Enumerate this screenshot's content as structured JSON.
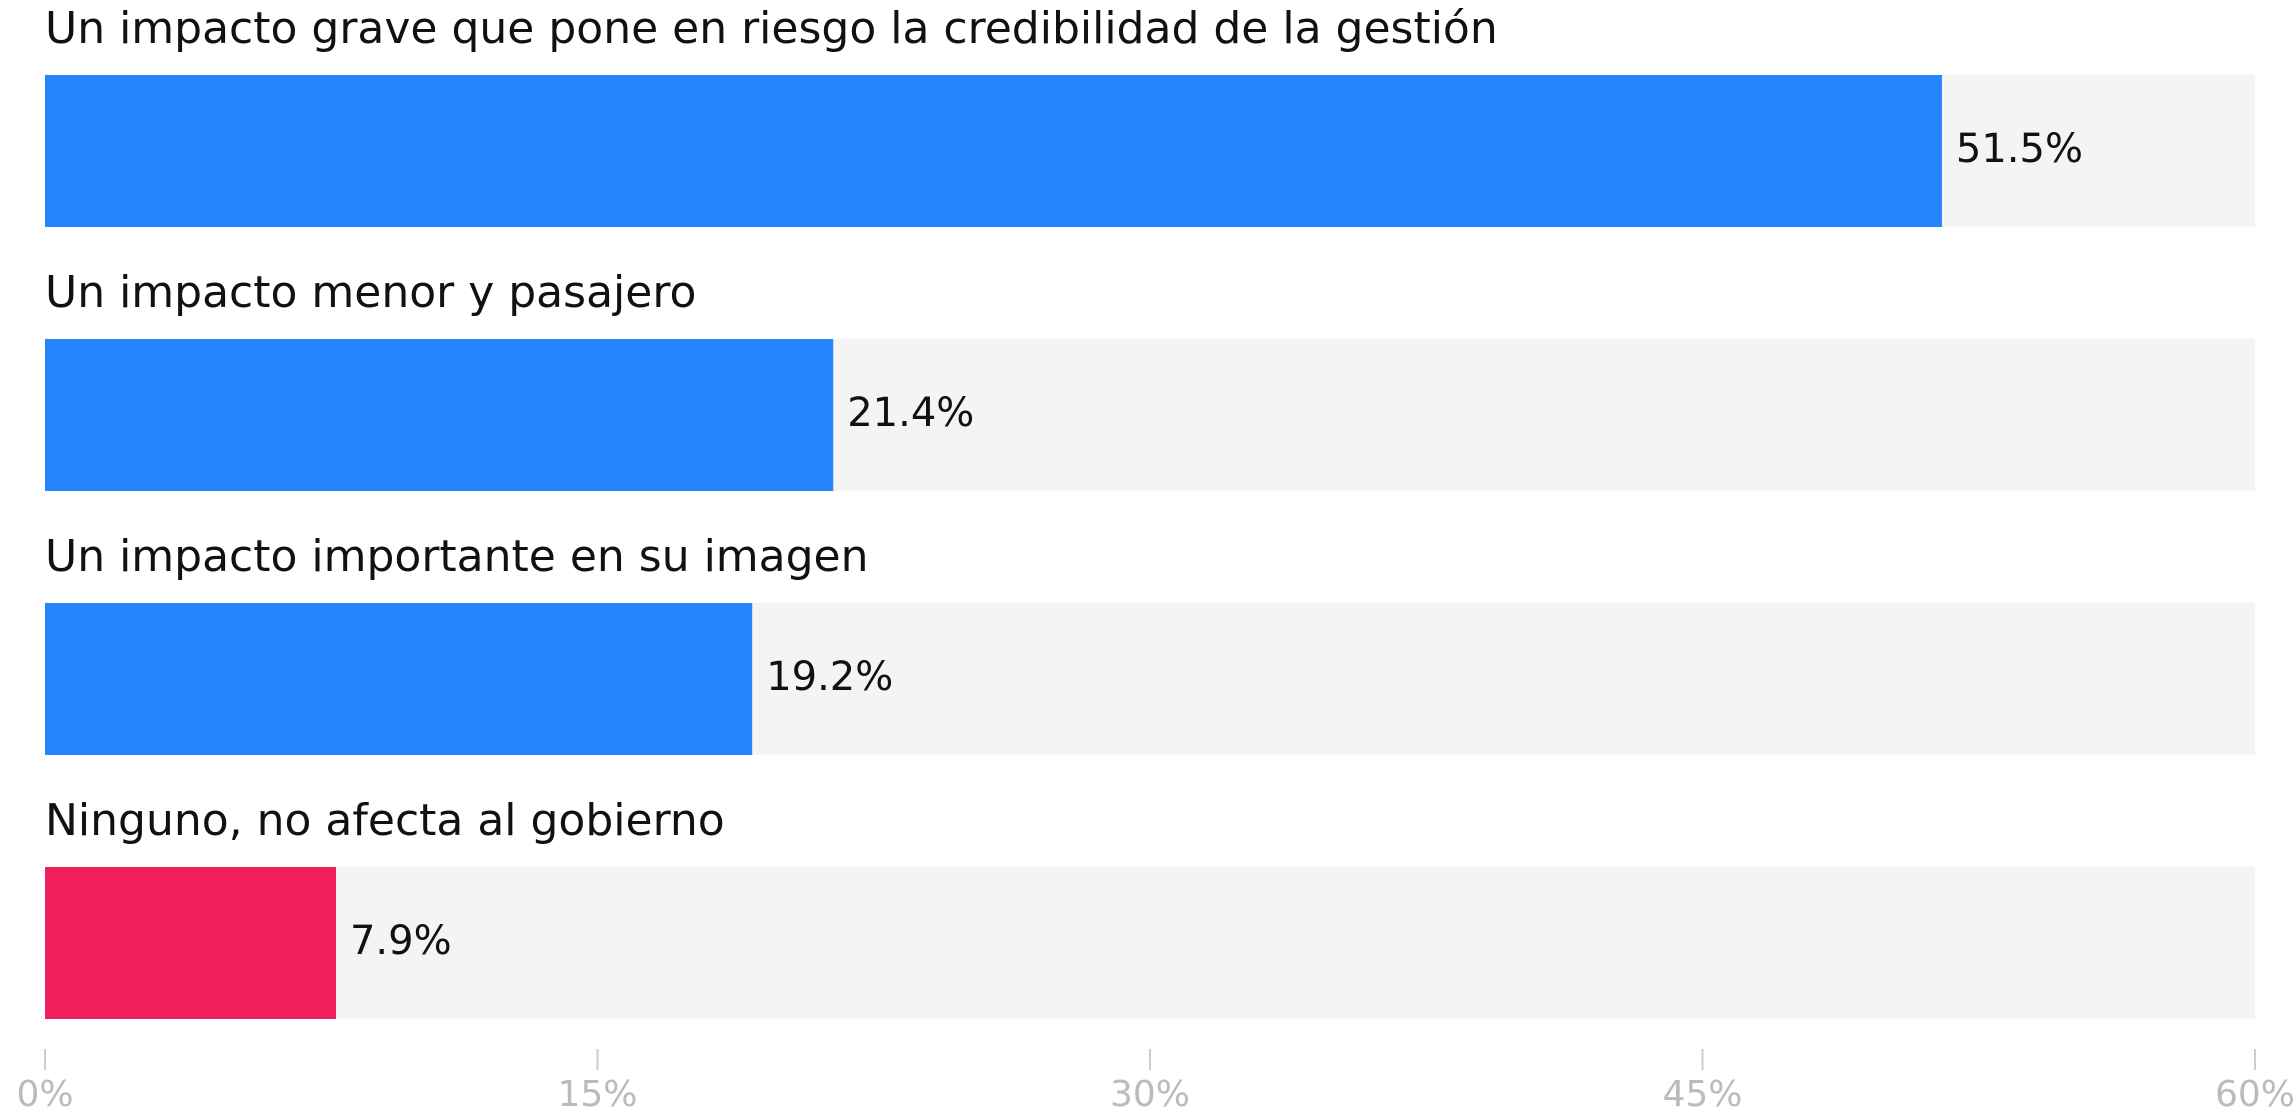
{
  "chart_data": {
    "type": "barh",
    "categories": [
      "Un impacto grave que pone en riesgo la credibilidad de la gestión",
      "Un impacto menor y pasajero",
      "Un impacto importante en su imagen",
      "Ninguno, no afecta al gobierno"
    ],
    "values": [
      51.5,
      21.4,
      19.2,
      7.9
    ],
    "value_labels": [
      "51.5%",
      "21.4%",
      "19.2%",
      "7.9%"
    ],
    "colors": [
      "#2684ff",
      "#2684ff",
      "#2684ff",
      "#ef1f5c"
    ],
    "track_color": "#f4f4f2",
    "xlim": [
      0,
      60
    ],
    "xticks": [
      {
        "value": 0,
        "label": "0%"
      },
      {
        "value": 15,
        "label": "15%"
      },
      {
        "value": 30,
        "label": "30%"
      },
      {
        "value": 45,
        "label": "45%"
      },
      {
        "value": 60,
        "label": "60%"
      }
    ]
  }
}
